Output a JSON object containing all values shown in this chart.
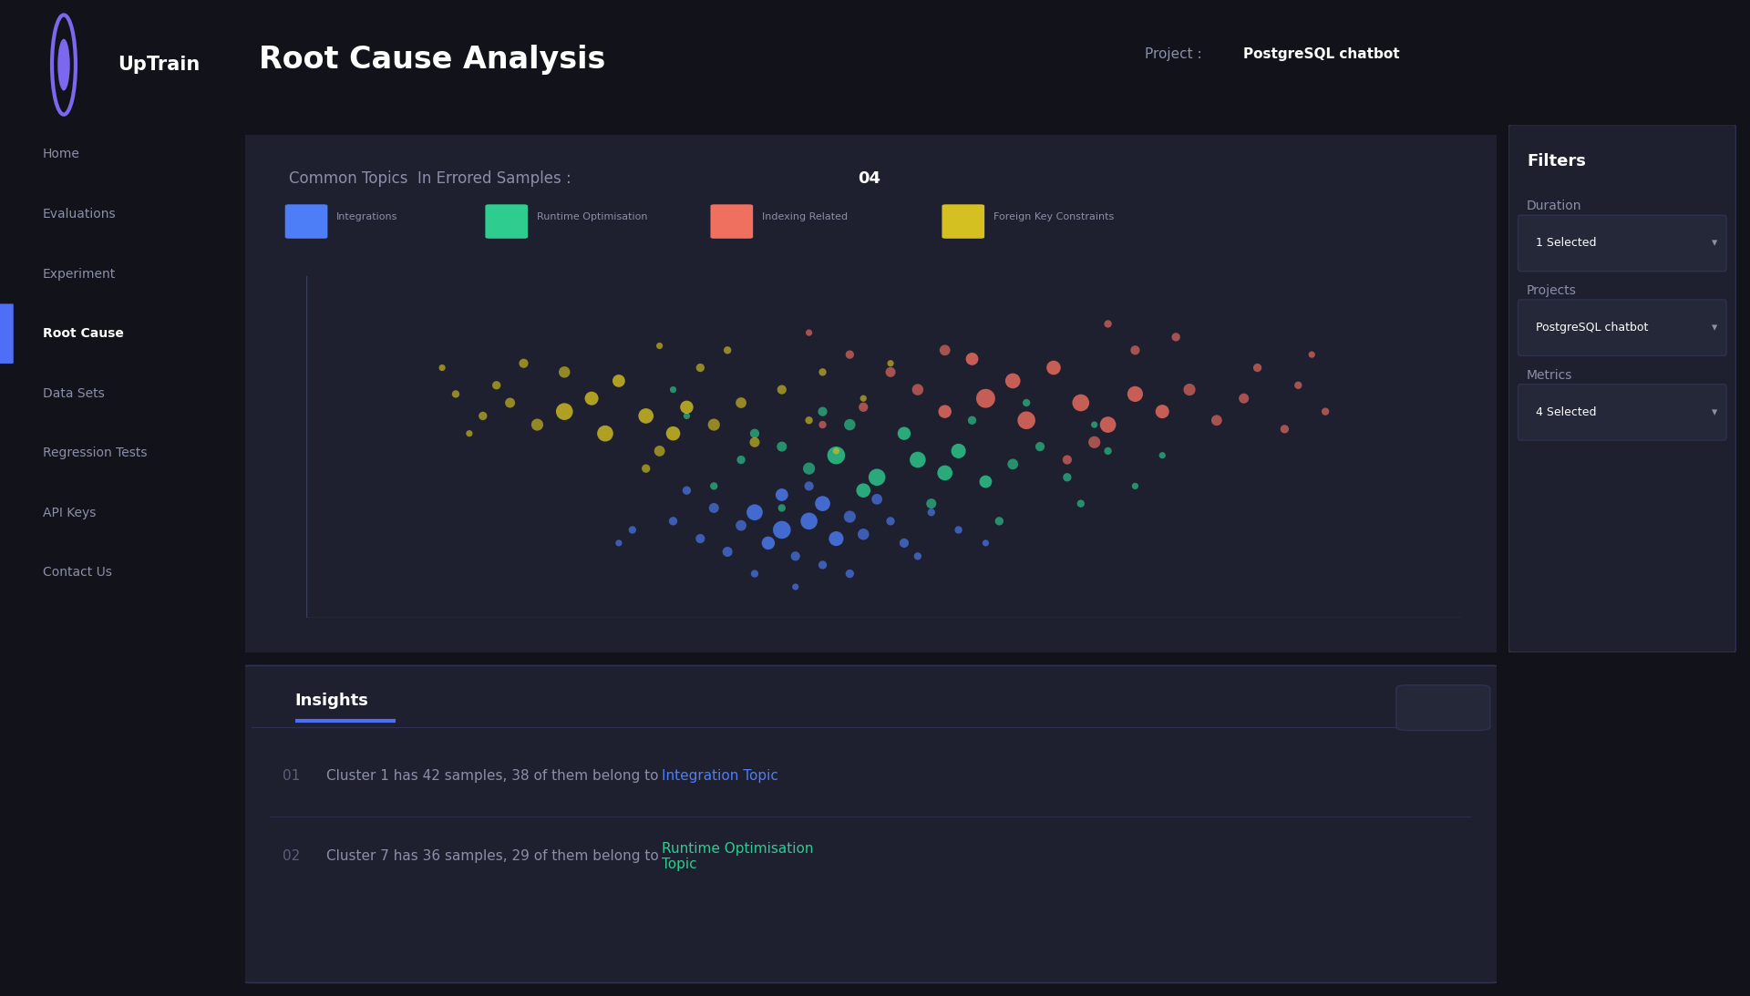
{
  "bg_color": "#12131a",
  "sidebar_color": "#1a1b26",
  "panel_color": "#1e2030",
  "card_color": "#252838",
  "border_color": "#2e3150",
  "text_primary": "#ffffff",
  "text_secondary": "#8b8fa8",
  "text_muted": "#5a5f7a",
  "accent_blue": "#4d6ef5",
  "nav_items": [
    "Home",
    "Evaluations",
    "Experiment",
    "Root Cause",
    "Data Sets",
    "Regression Tests",
    "API Keys",
    "Contact Us"
  ],
  "active_nav": "Root Cause",
  "title": "Root Cause Analysis",
  "project_label": "Project :",
  "project_name": "PostgreSQL chatbot",
  "header_subtitle": "Common Topics  In Errored Samples : ",
  "cluster_count": "04",
  "legend_items": [
    {
      "label": "Integrations",
      "color": "#4d7ef7"
    },
    {
      "label": "Runtime Optimisation",
      "color": "#2ecc8f"
    },
    {
      "label": "Indexing Related",
      "color": "#f07060"
    },
    {
      "label": "Foreign Key Constraints",
      "color": "#d4c020"
    }
  ],
  "clusters": [
    {
      "name": "Integrations",
      "color": "#4d7ef7",
      "points": [
        [
          0.48,
          0.42,
          18
        ],
        [
          0.5,
          0.38,
          22
        ],
        [
          0.52,
          0.4,
          20
        ],
        [
          0.54,
          0.36,
          15
        ],
        [
          0.49,
          0.35,
          12
        ],
        [
          0.53,
          0.44,
          16
        ],
        [
          0.55,
          0.41,
          10
        ],
        [
          0.47,
          0.39,
          8
        ],
        [
          0.51,
          0.32,
          6
        ],
        [
          0.56,
          0.37,
          9
        ],
        [
          0.45,
          0.43,
          7
        ],
        [
          0.58,
          0.4,
          5
        ],
        [
          0.5,
          0.46,
          11
        ],
        [
          0.44,
          0.36,
          6
        ],
        [
          0.53,
          0.3,
          5
        ],
        [
          0.57,
          0.45,
          8
        ],
        [
          0.46,
          0.33,
          7
        ],
        [
          0.59,
          0.35,
          6
        ],
        [
          0.42,
          0.4,
          5
        ],
        [
          0.61,
          0.42,
          4
        ],
        [
          0.48,
          0.28,
          4
        ],
        [
          0.55,
          0.28,
          5
        ],
        [
          0.43,
          0.47,
          5
        ],
        [
          0.6,
          0.32,
          4
        ],
        [
          0.52,
          0.48,
          6
        ],
        [
          0.39,
          0.38,
          4
        ],
        [
          0.63,
          0.38,
          4
        ],
        [
          0.51,
          0.25,
          3
        ],
        [
          0.38,
          0.35,
          3
        ],
        [
          0.65,
          0.35,
          3
        ]
      ]
    },
    {
      "name": "Runtime Optimisation",
      "color": "#2ecc8f",
      "points": [
        [
          0.54,
          0.55,
          22
        ],
        [
          0.57,
          0.5,
          20
        ],
        [
          0.6,
          0.54,
          18
        ],
        [
          0.62,
          0.51,
          16
        ],
        [
          0.56,
          0.47,
          14
        ],
        [
          0.63,
          0.56,
          15
        ],
        [
          0.59,
          0.6,
          12
        ],
        [
          0.52,
          0.52,
          10
        ],
        [
          0.65,
          0.49,
          11
        ],
        [
          0.55,
          0.62,
          9
        ],
        [
          0.67,
          0.53,
          8
        ],
        [
          0.5,
          0.57,
          7
        ],
        [
          0.61,
          0.44,
          7
        ],
        [
          0.69,
          0.57,
          6
        ],
        [
          0.53,
          0.65,
          6
        ],
        [
          0.71,
          0.5,
          5
        ],
        [
          0.48,
          0.6,
          6
        ],
        [
          0.64,
          0.63,
          5
        ],
        [
          0.72,
          0.44,
          4
        ],
        [
          0.47,
          0.54,
          5
        ],
        [
          0.66,
          0.4,
          5
        ],
        [
          0.74,
          0.56,
          4
        ],
        [
          0.45,
          0.48,
          4
        ],
        [
          0.68,
          0.67,
          4
        ],
        [
          0.73,
          0.62,
          3
        ],
        [
          0.43,
          0.64,
          3
        ],
        [
          0.76,
          0.48,
          3
        ],
        [
          0.5,
          0.43,
          4
        ],
        [
          0.78,
          0.55,
          3
        ],
        [
          0.42,
          0.7,
          3
        ]
      ]
    },
    {
      "name": "Indexing Related",
      "color": "#f07060",
      "points": [
        [
          0.65,
          0.68,
          25
        ],
        [
          0.68,
          0.63,
          22
        ],
        [
          0.72,
          0.67,
          20
        ],
        [
          0.74,
          0.62,
          18
        ],
        [
          0.67,
          0.72,
          16
        ],
        [
          0.76,
          0.69,
          17
        ],
        [
          0.7,
          0.75,
          14
        ],
        [
          0.62,
          0.65,
          12
        ],
        [
          0.78,
          0.65,
          13
        ],
        [
          0.64,
          0.77,
          11
        ],
        [
          0.8,
          0.7,
          10
        ],
        [
          0.6,
          0.7,
          9
        ],
        [
          0.73,
          0.58,
          10
        ],
        [
          0.82,
          0.63,
          8
        ],
        [
          0.62,
          0.79,
          8
        ],
        [
          0.84,
          0.68,
          7
        ],
        [
          0.58,
          0.74,
          7
        ],
        [
          0.76,
          0.79,
          6
        ],
        [
          0.85,
          0.75,
          5
        ],
        [
          0.56,
          0.66,
          6
        ],
        [
          0.71,
          0.54,
          6
        ],
        [
          0.87,
          0.61,
          5
        ],
        [
          0.55,
          0.78,
          5
        ],
        [
          0.79,
          0.82,
          5
        ],
        [
          0.88,
          0.71,
          4
        ],
        [
          0.53,
          0.62,
          4
        ],
        [
          0.74,
          0.85,
          4
        ],
        [
          0.9,
          0.65,
          4
        ],
        [
          0.52,
          0.83,
          3
        ],
        [
          0.89,
          0.78,
          3
        ]
      ]
    },
    {
      "name": "Foreign Key Constraints",
      "color": "#d4c020",
      "points": [
        [
          0.34,
          0.65,
          20
        ],
        [
          0.37,
          0.6,
          18
        ],
        [
          0.4,
          0.64,
          16
        ],
        [
          0.42,
          0.6,
          14
        ],
        [
          0.36,
          0.68,
          13
        ],
        [
          0.43,
          0.66,
          12
        ],
        [
          0.38,
          0.72,
          11
        ],
        [
          0.32,
          0.62,
          10
        ],
        [
          0.45,
          0.62,
          10
        ],
        [
          0.34,
          0.74,
          9
        ],
        [
          0.47,
          0.67,
          8
        ],
        [
          0.3,
          0.67,
          7
        ],
        [
          0.41,
          0.56,
          8
        ],
        [
          0.48,
          0.58,
          7
        ],
        [
          0.31,
          0.76,
          6
        ],
        [
          0.5,
          0.7,
          6
        ],
        [
          0.28,
          0.64,
          5
        ],
        [
          0.44,
          0.75,
          5
        ],
        [
          0.52,
          0.63,
          4
        ],
        [
          0.29,
          0.71,
          5
        ],
        [
          0.4,
          0.52,
          5
        ],
        [
          0.53,
          0.74,
          4
        ],
        [
          0.26,
          0.69,
          4
        ],
        [
          0.46,
          0.79,
          4
        ],
        [
          0.54,
          0.56,
          3
        ],
        [
          0.27,
          0.6,
          3
        ],
        [
          0.41,
          0.8,
          3
        ],
        [
          0.56,
          0.68,
          3
        ],
        [
          0.25,
          0.75,
          3
        ],
        [
          0.58,
          0.76,
          3
        ]
      ]
    }
  ],
  "scatter_axis_color": "#3a3f5c",
  "insights": [
    {
      "num": "01",
      "text_before": "Cluster 1 has 42 samples, 38 of them belong to ",
      "highlight": "Integration Topic",
      "highlight_color": "#4d7ef7"
    },
    {
      "num": "02",
      "text_before": "Cluster 7 has 36 samples, 29 of them belong to ",
      "highlight": "Runtime Optimisation\nTopic",
      "highlight_color": "#2ecc8f"
    }
  ],
  "filters_title": "Filters",
  "filter_items": [
    {
      "label": "Duration",
      "value": "1 Selected"
    },
    {
      "label": "Projects",
      "value": "PostgreSQL chatbot"
    },
    {
      "label": "Metrics",
      "value": "4 Selected"
    }
  ]
}
